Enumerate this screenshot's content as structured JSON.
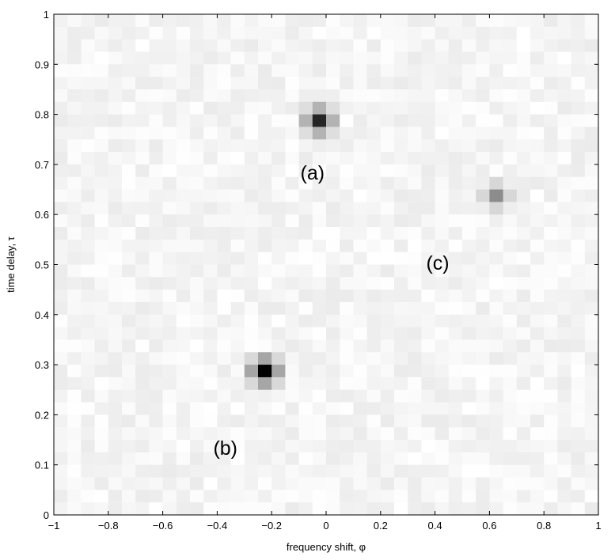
{
  "chart_data": {
    "type": "heatmap",
    "title": "",
    "xlabel": "frequency shift, φ",
    "ylabel": "time delay, τ",
    "xlim": [
      -1,
      1
    ],
    "ylim": [
      0,
      1
    ],
    "xticks": [
      "−1",
      "−0.8",
      "−0.6",
      "−0.4",
      "−0.2",
      "0",
      "0.2",
      "0.4",
      "0.6",
      "0.8",
      "1"
    ],
    "yticks": [
      "0",
      "0.1",
      "0.2",
      "0.3",
      "0.4",
      "0.5",
      "0.6",
      "0.7",
      "0.8",
      "0.9",
      "1"
    ],
    "grid": false,
    "colormap": "gray-inverted",
    "background_noise_level": 0.08,
    "peaks": [
      {
        "x": -0.02,
        "y": 0.795,
        "intensity": 0.85
      },
      {
        "x": -0.22,
        "y": 0.285,
        "intensity": 1.0
      },
      {
        "x": 0.6,
        "y": 0.65,
        "intensity": 0.45
      }
    ],
    "annotations": [
      {
        "text": "(a)",
        "x": -0.05,
        "y": 0.67
      },
      {
        "text": "(b)",
        "x": -0.37,
        "y": 0.12
      },
      {
        "text": "(c)",
        "x": 0.41,
        "y": 0.49
      }
    ]
  }
}
